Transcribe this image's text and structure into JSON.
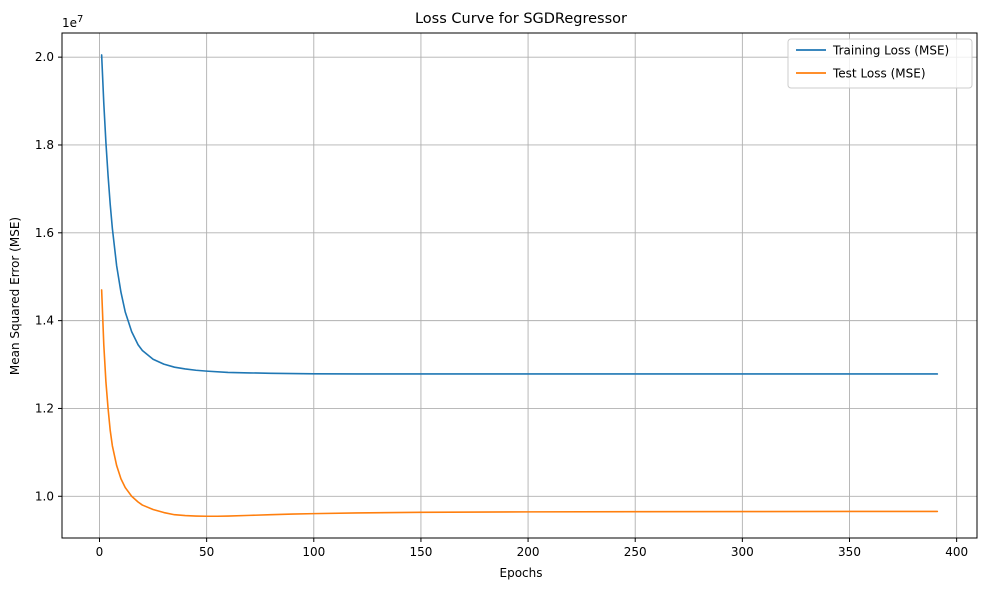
{
  "chart_data": {
    "type": "line",
    "title": "Loss Curve for SGDRegressor",
    "xlabel": "Epochs",
    "ylabel": "Mean Squared Error (MSE)",
    "y_offset_label": "1e7",
    "xlim": [
      -17.5,
      409.5
    ],
    "ylim": [
      9.05,
      20.55
    ],
    "y_scale_factor": 10000000,
    "x_ticks": [
      0,
      50,
      100,
      150,
      200,
      250,
      300,
      350,
      400
    ],
    "y_ticks": [
      1.0,
      1.2,
      1.4,
      1.6,
      1.8,
      2.0
    ],
    "x_tick_labels": [
      "0",
      "50",
      "100",
      "150",
      "200",
      "250",
      "300",
      "350",
      "400"
    ],
    "y_tick_labels": [
      "1.0",
      "1.2",
      "1.4",
      "1.6",
      "1.8",
      "2.0"
    ],
    "grid": true,
    "legend_position": "top-right",
    "series": [
      {
        "name": "Training Loss (MSE)",
        "color": "#1f77b4",
        "x": [
          1,
          2,
          3,
          4,
          5,
          6,
          8,
          10,
          12,
          15,
          18,
          20,
          25,
          30,
          35,
          40,
          45,
          50,
          60,
          70,
          80,
          90,
          100,
          120,
          150,
          200,
          250,
          300,
          350,
          391
        ],
        "y": [
          20.05,
          18.95,
          18.05,
          17.3,
          16.65,
          16.1,
          15.25,
          14.65,
          14.2,
          13.75,
          13.45,
          13.32,
          13.12,
          13.01,
          12.94,
          12.9,
          12.87,
          12.85,
          12.82,
          12.81,
          12.8,
          12.795,
          12.79,
          12.785,
          12.785,
          12.785,
          12.785,
          12.785,
          12.785,
          12.785
        ]
      },
      {
        "name": "Test Loss (MSE)",
        "color": "#ff7f0e",
        "x": [
          1,
          2,
          3,
          4,
          5,
          6,
          8,
          10,
          12,
          15,
          18,
          20,
          25,
          30,
          35,
          40,
          45,
          50,
          55,
          60,
          70,
          80,
          90,
          100,
          120,
          150,
          200,
          250,
          300,
          350,
          391
        ],
        "y": [
          14.7,
          13.45,
          12.6,
          12.0,
          11.5,
          11.15,
          10.7,
          10.4,
          10.2,
          10.0,
          9.87,
          9.8,
          9.7,
          9.63,
          9.58,
          9.56,
          9.55,
          9.545,
          9.545,
          9.55,
          9.565,
          9.58,
          9.595,
          9.605,
          9.62,
          9.635,
          9.645,
          9.65,
          9.652,
          9.654,
          9.655
        ]
      }
    ]
  }
}
